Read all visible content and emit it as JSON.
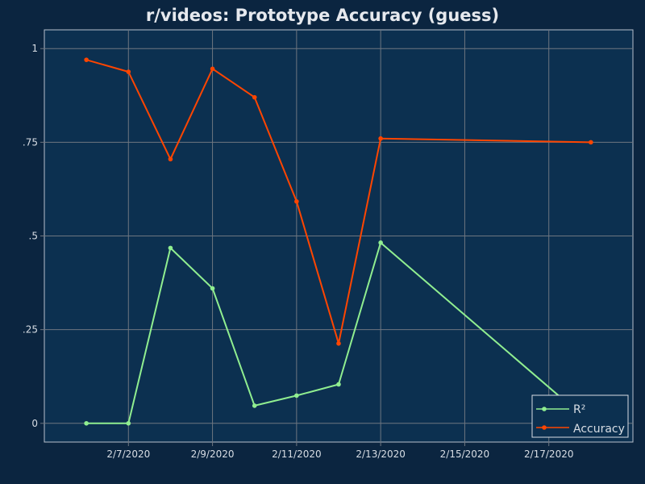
{
  "chart_data": {
    "type": "line",
    "title": "r/videos: Prototype Accuracy (guess)",
    "xlabel": "",
    "ylabel": "",
    "x_type": "date",
    "x": [
      "2020-02-06",
      "2020-02-07",
      "2020-02-08",
      "2020-02-09",
      "2020-02-10",
      "2020-02-11",
      "2020-02-12",
      "2020-02-13",
      "2020-02-18"
    ],
    "x_ticks": [
      "2020-02-07",
      "2020-02-09",
      "2020-02-11",
      "2020-02-13",
      "2020-02-15",
      "2020-02-17"
    ],
    "x_tick_labels": [
      "2/7/2020",
      "2/9/2020",
      "2/11/2020",
      "2/13/2020",
      "2/15/2020",
      "2/17/2020"
    ],
    "ylim": [
      -0.05,
      1.05
    ],
    "y_ticks": [
      0,
      0.25,
      0.5,
      0.75,
      1
    ],
    "y_tick_labels": [
      "0",
      ".25",
      ".5",
      ".75",
      "1"
    ],
    "grid": true,
    "legend_position": "bottom-right",
    "series": [
      {
        "name": "R²",
        "color": "#90ee90",
        "values": [
          0.0,
          0.0,
          0.468,
          0.36,
          0.047,
          0.074,
          0.104,
          0.482,
          0.0
        ]
      },
      {
        "name": "Accuracy",
        "color": "#ff4500",
        "values": [
          0.97,
          0.938,
          0.705,
          0.946,
          0.87,
          0.592,
          0.213,
          0.76,
          0.75
        ]
      }
    ]
  },
  "colors": {
    "page_background": "#0b2540",
    "plot_background": "#0c3050",
    "grid": "#6e7680",
    "text": "#d7dde4"
  }
}
